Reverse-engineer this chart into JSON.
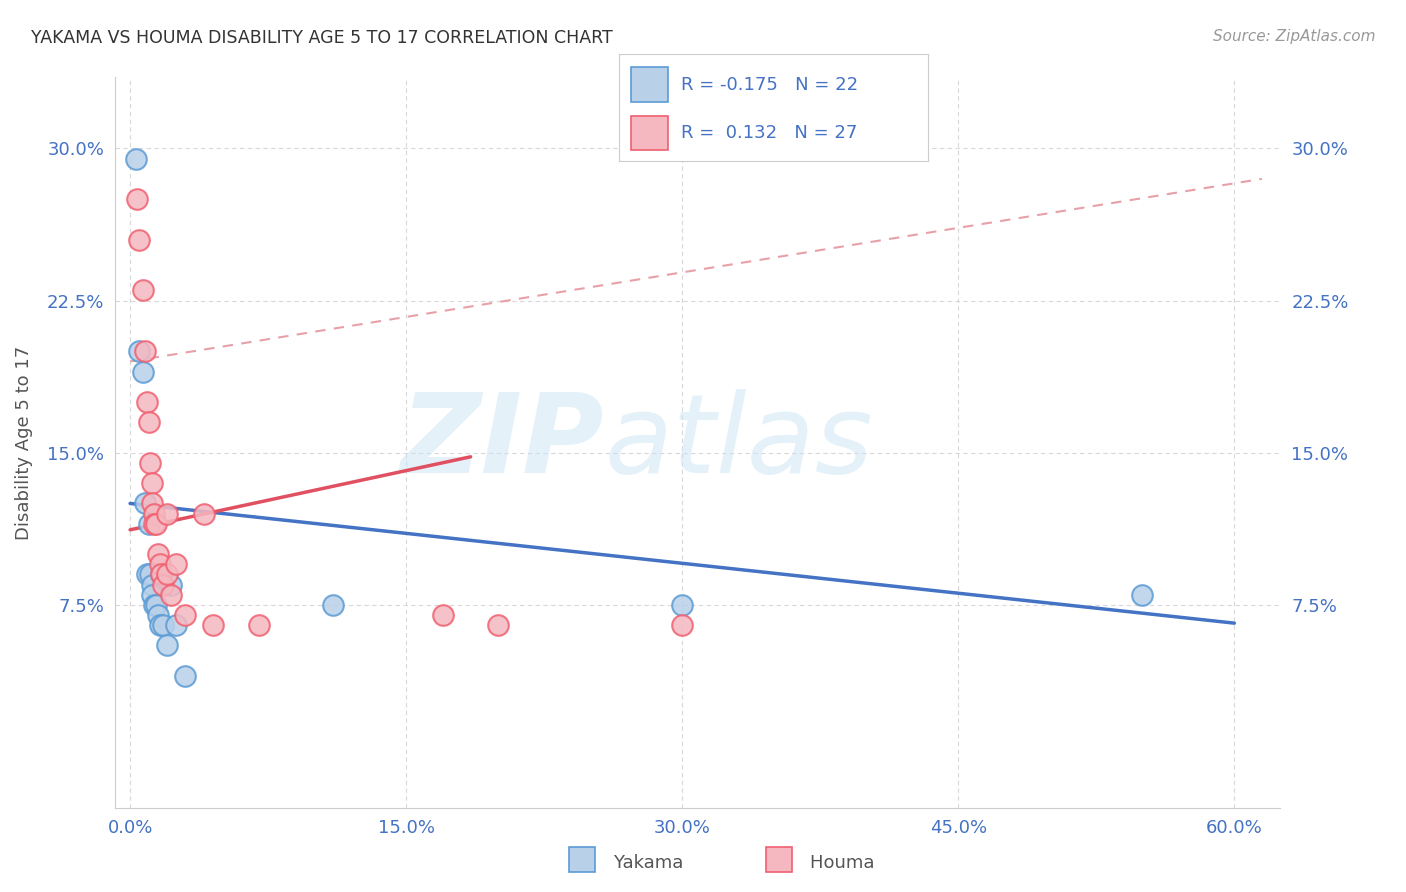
{
  "title": "YAKAMA VS HOUMA DISABILITY AGE 5 TO 17 CORRELATION CHART",
  "source": "Source: ZipAtlas.com",
  "ylabel": "Disability Age 5 to 17",
  "xlabel_ticks": [
    "0.0%",
    "15.0%",
    "30.0%",
    "45.0%",
    "60.0%"
  ],
  "xlabel_vals": [
    0.0,
    0.15,
    0.3,
    0.45,
    0.6
  ],
  "ylabel_ticks": [
    "7.5%",
    "15.0%",
    "22.5%",
    "30.0%"
  ],
  "ylabel_vals": [
    0.075,
    0.15,
    0.225,
    0.3
  ],
  "xlim": [
    -0.008,
    0.625
  ],
  "ylim": [
    -0.025,
    0.335
  ],
  "yakama_color": "#b8d0e8",
  "houma_color": "#f5b8c0",
  "yakama_edge": "#5b9bd5",
  "houma_edge": "#f06070",
  "trend_yakama_color": "#4472c4",
  "trend_houma_color": "#e05060",
  "trend_dashed_color": "#e8a0a8",
  "legend_R_yakama": "R = -0.175",
  "legend_N_yakama": "N = 22",
  "legend_R_houma": "R =  0.132",
  "legend_N_houma": "N = 27",
  "watermark_zip": "ZIP",
  "watermark_atlas": "atlas",
  "yakama_x": [
    0.003,
    0.005,
    0.007,
    0.008,
    0.009,
    0.01,
    0.011,
    0.012,
    0.012,
    0.013,
    0.014,
    0.015,
    0.016,
    0.017,
    0.018,
    0.02,
    0.022,
    0.025,
    0.03,
    0.11,
    0.3,
    0.55
  ],
  "yakama_y": [
    0.295,
    0.2,
    0.19,
    0.125,
    0.09,
    0.115,
    0.09,
    0.085,
    0.08,
    0.075,
    0.075,
    0.07,
    0.065,
    0.09,
    0.065,
    0.055,
    0.085,
    0.065,
    0.04,
    0.075,
    0.075,
    0.08
  ],
  "houma_x": [
    0.004,
    0.005,
    0.007,
    0.008,
    0.009,
    0.01,
    0.011,
    0.012,
    0.012,
    0.013,
    0.013,
    0.014,
    0.015,
    0.016,
    0.017,
    0.018,
    0.02,
    0.02,
    0.022,
    0.025,
    0.03,
    0.04,
    0.045,
    0.07,
    0.17,
    0.2,
    0.3
  ],
  "houma_y": [
    0.275,
    0.255,
    0.23,
    0.2,
    0.175,
    0.165,
    0.145,
    0.135,
    0.125,
    0.12,
    0.115,
    0.115,
    0.1,
    0.095,
    0.09,
    0.085,
    0.12,
    0.09,
    0.08,
    0.095,
    0.07,
    0.12,
    0.065,
    0.065,
    0.07,
    0.065,
    0.065
  ],
  "trend_yakama_x0": 0.0,
  "trend_yakama_x1": 0.6,
  "trend_yakama_y0": 0.125,
  "trend_yakama_y1": 0.066,
  "trend_houma_x0": 0.0,
  "trend_houma_x1": 0.185,
  "trend_houma_y0": 0.112,
  "trend_houma_y1": 0.148,
  "trend_dash_x0": 0.0,
  "trend_dash_x1": 0.615,
  "trend_dash_y0": 0.195,
  "trend_dash_y1": 0.285
}
